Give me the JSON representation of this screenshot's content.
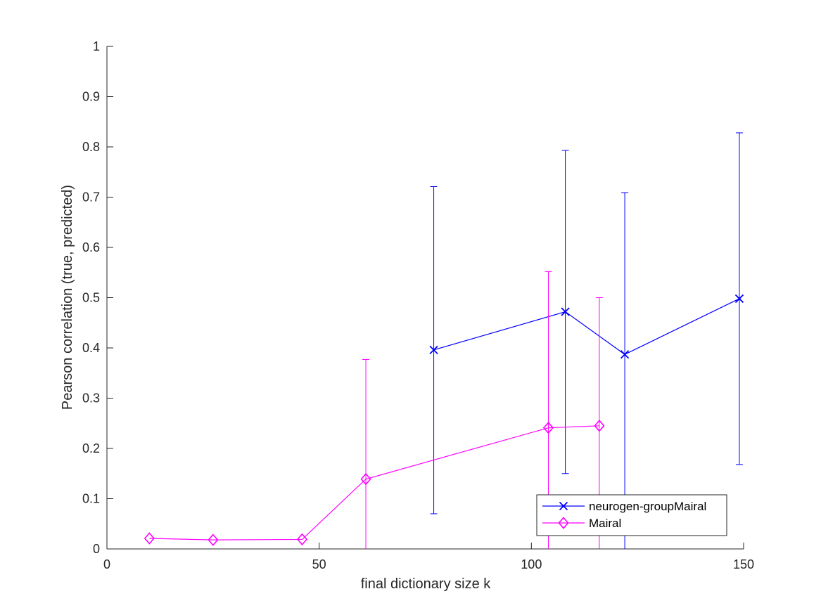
{
  "chart_data": {
    "type": "line",
    "title": "",
    "xlabel": "final dictionary size k",
    "ylabel": "Pearson correlation (true, predicted)",
    "xlim": [
      0,
      150
    ],
    "ylim": [
      0,
      1
    ],
    "xticks": [
      0,
      50,
      100,
      150
    ],
    "yticks": [
      0,
      0.1,
      0.2,
      0.3,
      0.4,
      0.5,
      0.6,
      0.7,
      0.8,
      0.9,
      1
    ],
    "grid": false,
    "legend_position": "bottom-right",
    "series": [
      {
        "name": "neurogen-groupMairal",
        "color": "#0000ff",
        "marker": "x",
        "x": [
          77,
          108,
          122,
          149
        ],
        "y": [
          0.396,
          0.472,
          0.387,
          0.498
        ],
        "err_low": [
          0.07,
          0.15,
          0.0,
          0.168
        ],
        "err_high": [
          0.721,
          0.793,
          0.709,
          0.828
        ]
      },
      {
        "name": "Mairal",
        "color": "#ff00ff",
        "marker": "diamond",
        "x": [
          10,
          25,
          46,
          61,
          104,
          116
        ],
        "y": [
          0.021,
          0.018,
          0.019,
          0.139,
          0.241,
          0.245
        ],
        "err_low": [
          0.021,
          0.018,
          0.019,
          0.0,
          0.0,
          0.0
        ],
        "err_high": [
          0.021,
          0.018,
          0.019,
          0.377,
          0.552,
          0.5
        ]
      }
    ]
  }
}
